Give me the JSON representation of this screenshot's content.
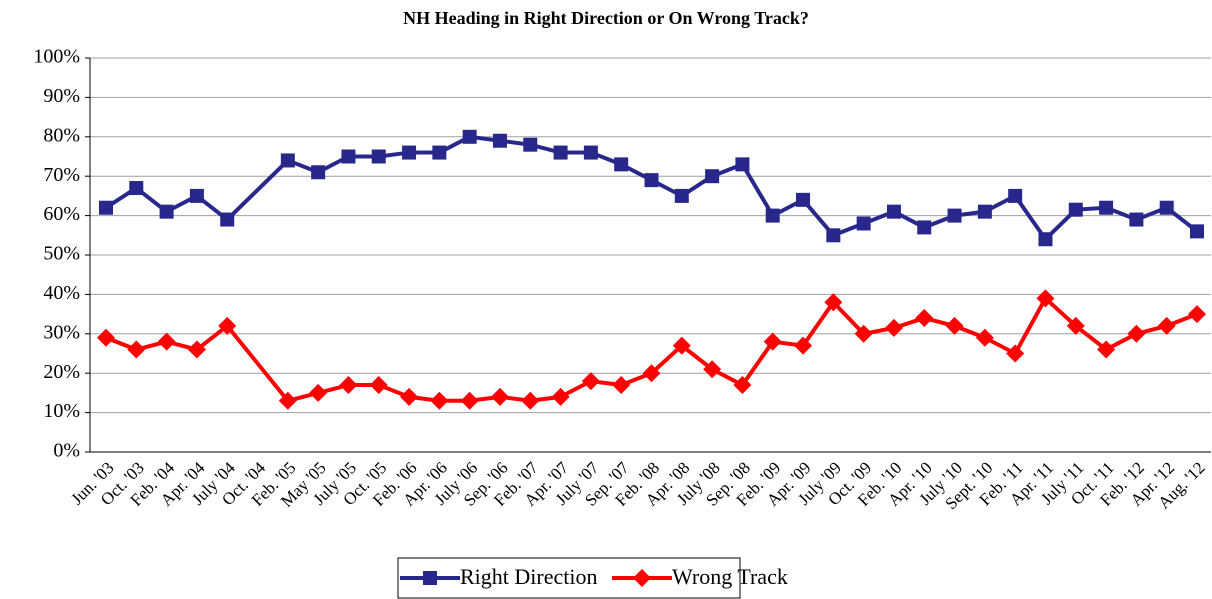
{
  "chart_data": {
    "type": "line",
    "title": "NH Heading in Right Direction or On Wrong Track?",
    "categories": [
      "Jun. '03",
      "Oct. '03",
      "Feb. '04",
      "Apr. '04",
      "July '04",
      "Oct. '04",
      "Feb. '05",
      "May '05",
      "July '05",
      "Oct. '05",
      "Feb. '06",
      "Apr. '06",
      "July '06",
      "Sep. '06",
      "Feb. '07",
      "Apr. '07",
      "July '07",
      "Sep. '07",
      "Feb. '08",
      "Apr. '08",
      "July '08",
      "Sep. '08",
      "Feb. '09",
      "Apr. '09",
      "July '09",
      "Oct. '09",
      "Feb. '10",
      "Apr. '10",
      "July '10",
      "Sept. '10",
      "Feb. '11",
      "Apr. '11",
      "July '11",
      "Oct. '11",
      "Feb. '12",
      "Apr. '12",
      "Aug. '12"
    ],
    "series": [
      {
        "name": "Right Direction",
        "color": "#28288c",
        "marker": "square",
        "values": [
          62,
          67,
          61,
          65,
          59,
          null,
          74,
          71,
          75,
          75,
          76,
          76,
          80,
          79,
          78,
          76,
          76,
          73,
          69,
          65,
          70,
          73,
          60,
          64,
          55,
          58,
          61,
          57,
          60,
          61,
          65,
          54,
          61.5,
          62,
          59,
          62,
          56
        ]
      },
      {
        "name": "Wrong Track",
        "color": "#ff0000",
        "marker": "diamond",
        "values": [
          29,
          26,
          28,
          26,
          32,
          null,
          13,
          15,
          17,
          17,
          14,
          13,
          13,
          14,
          13,
          14,
          18,
          17,
          20,
          27,
          21,
          17,
          28,
          27,
          38,
          30,
          31.5,
          34,
          32,
          29,
          25,
          39,
          32,
          26,
          30,
          32,
          35
        ]
      }
    ],
    "connect_gaps": true,
    "ylim": [
      0,
      100
    ],
    "yticks": [
      {
        "value": 0,
        "label": "0%"
      },
      {
        "value": 10,
        "label": "10%"
      },
      {
        "value": 20,
        "label": "20%"
      },
      {
        "value": 30,
        "label": "30%"
      },
      {
        "value": 40,
        "label": "40%"
      },
      {
        "value": 50,
        "label": "50%"
      },
      {
        "value": 60,
        "label": "60%"
      },
      {
        "value": 70,
        "label": "70%"
      },
      {
        "value": 80,
        "label": "80%"
      },
      {
        "value": 90,
        "label": "90%"
      },
      {
        "value": 100,
        "label": "100%"
      }
    ],
    "grid": true,
    "legend": "bottom"
  }
}
